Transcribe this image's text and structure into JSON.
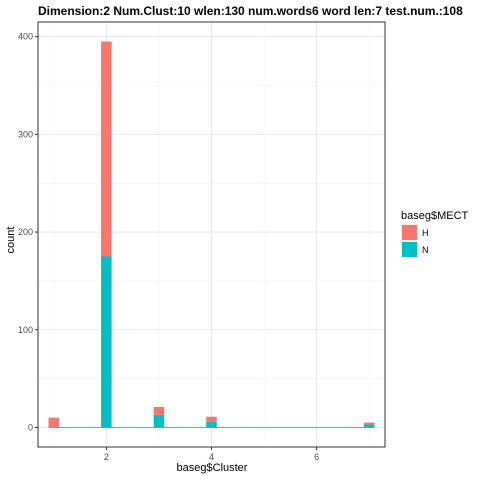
{
  "chart_data": {
    "type": "bar",
    "stacked": true,
    "title": "Dimension:2  Num.Clust:10  wlen:130  num.words6  word len:7  test.num.:108",
    "xlabel": "baseg$Cluster",
    "ylabel": "count",
    "xlim": [
      0.7,
      7.3
    ],
    "ylim": [
      -20,
      415
    ],
    "x_ticks": [
      2,
      4,
      6
    ],
    "y_ticks": [
      0,
      100,
      200,
      300,
      400
    ],
    "grid": true,
    "bin_width": 0.2,
    "legend": {
      "title": "baseg$MECT",
      "position": "right",
      "entries": [
        {
          "label": "H",
          "color": "#F8766D"
        },
        {
          "label": "N",
          "color": "#00BFC4"
        }
      ]
    },
    "x": [
      1,
      2,
      3,
      4,
      7
    ],
    "series": [
      {
        "name": "N",
        "color": "#00BFC4",
        "values": [
          0,
          175,
          13,
          6,
          3
        ]
      },
      {
        "name": "H",
        "color": "#F8766D",
        "values": [
          10,
          220,
          8,
          5,
          2
        ]
      }
    ]
  }
}
